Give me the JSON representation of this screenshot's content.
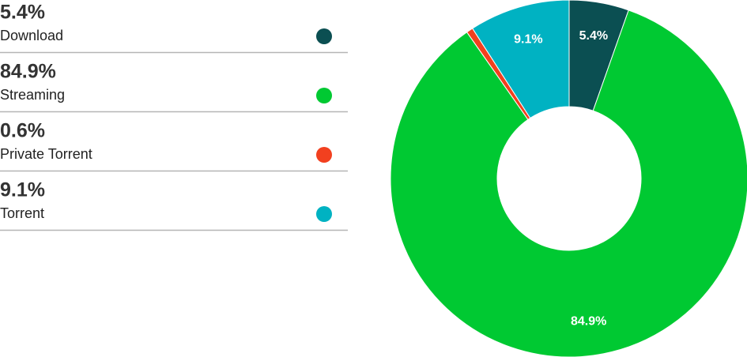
{
  "chart_data": {
    "type": "pie",
    "categories": [
      "Download",
      "Streaming",
      "Private Torrent",
      "Torrent"
    ],
    "values": [
      5.4,
      84.9,
      0.6,
      9.1
    ],
    "value_labels": [
      "5.4%",
      "84.9%",
      "0.6%",
      "9.1%"
    ],
    "colors": [
      "#0b4f52",
      "#00c932",
      "#f2401f",
      "#00b2c2"
    ],
    "donut": true
  }
}
